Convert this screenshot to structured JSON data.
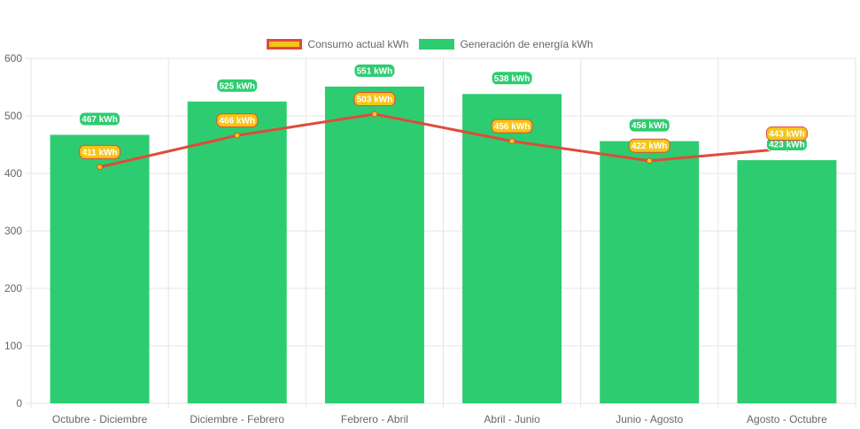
{
  "colors": {
    "bar": "#2ecc71",
    "line": "#e04b3a",
    "point": "#f5c518",
    "bar_label_bg": "#2ecc71",
    "line_label_bg": "#f5c518",
    "grid": "#e5e5e5",
    "axis_text": "#666666"
  },
  "chart_data": {
    "type": "bar",
    "categories": [
      "Octubre - Diciembre",
      "Diciembre - Febrero",
      "Febrero - Abril",
      "Abril - Junio",
      "Junio - Agosto",
      "Agosto - Octubre"
    ],
    "series": [
      {
        "name": "Consumo actual kWh",
        "type": "line",
        "values": [
          411,
          466,
          503,
          456,
          422,
          443
        ],
        "labels": [
          "411 kWh",
          "466 kWh",
          "503 kWh",
          "456 kWh",
          "422 kWh",
          "443 kWh"
        ]
      },
      {
        "name": "Generación de energía kWh",
        "type": "bar",
        "values": [
          467,
          525,
          551,
          538,
          456,
          423
        ],
        "labels": [
          "467 kWh",
          "525 kWh",
          "551 kWh",
          "538 kWh",
          "456 kWh",
          "423 kWh"
        ]
      }
    ],
    "yticks": [
      "0",
      "100",
      "200",
      "300",
      "400",
      "500",
      "600"
    ],
    "ylim": [
      0,
      600
    ],
    "grid": true,
    "legend_position": "top-center"
  }
}
